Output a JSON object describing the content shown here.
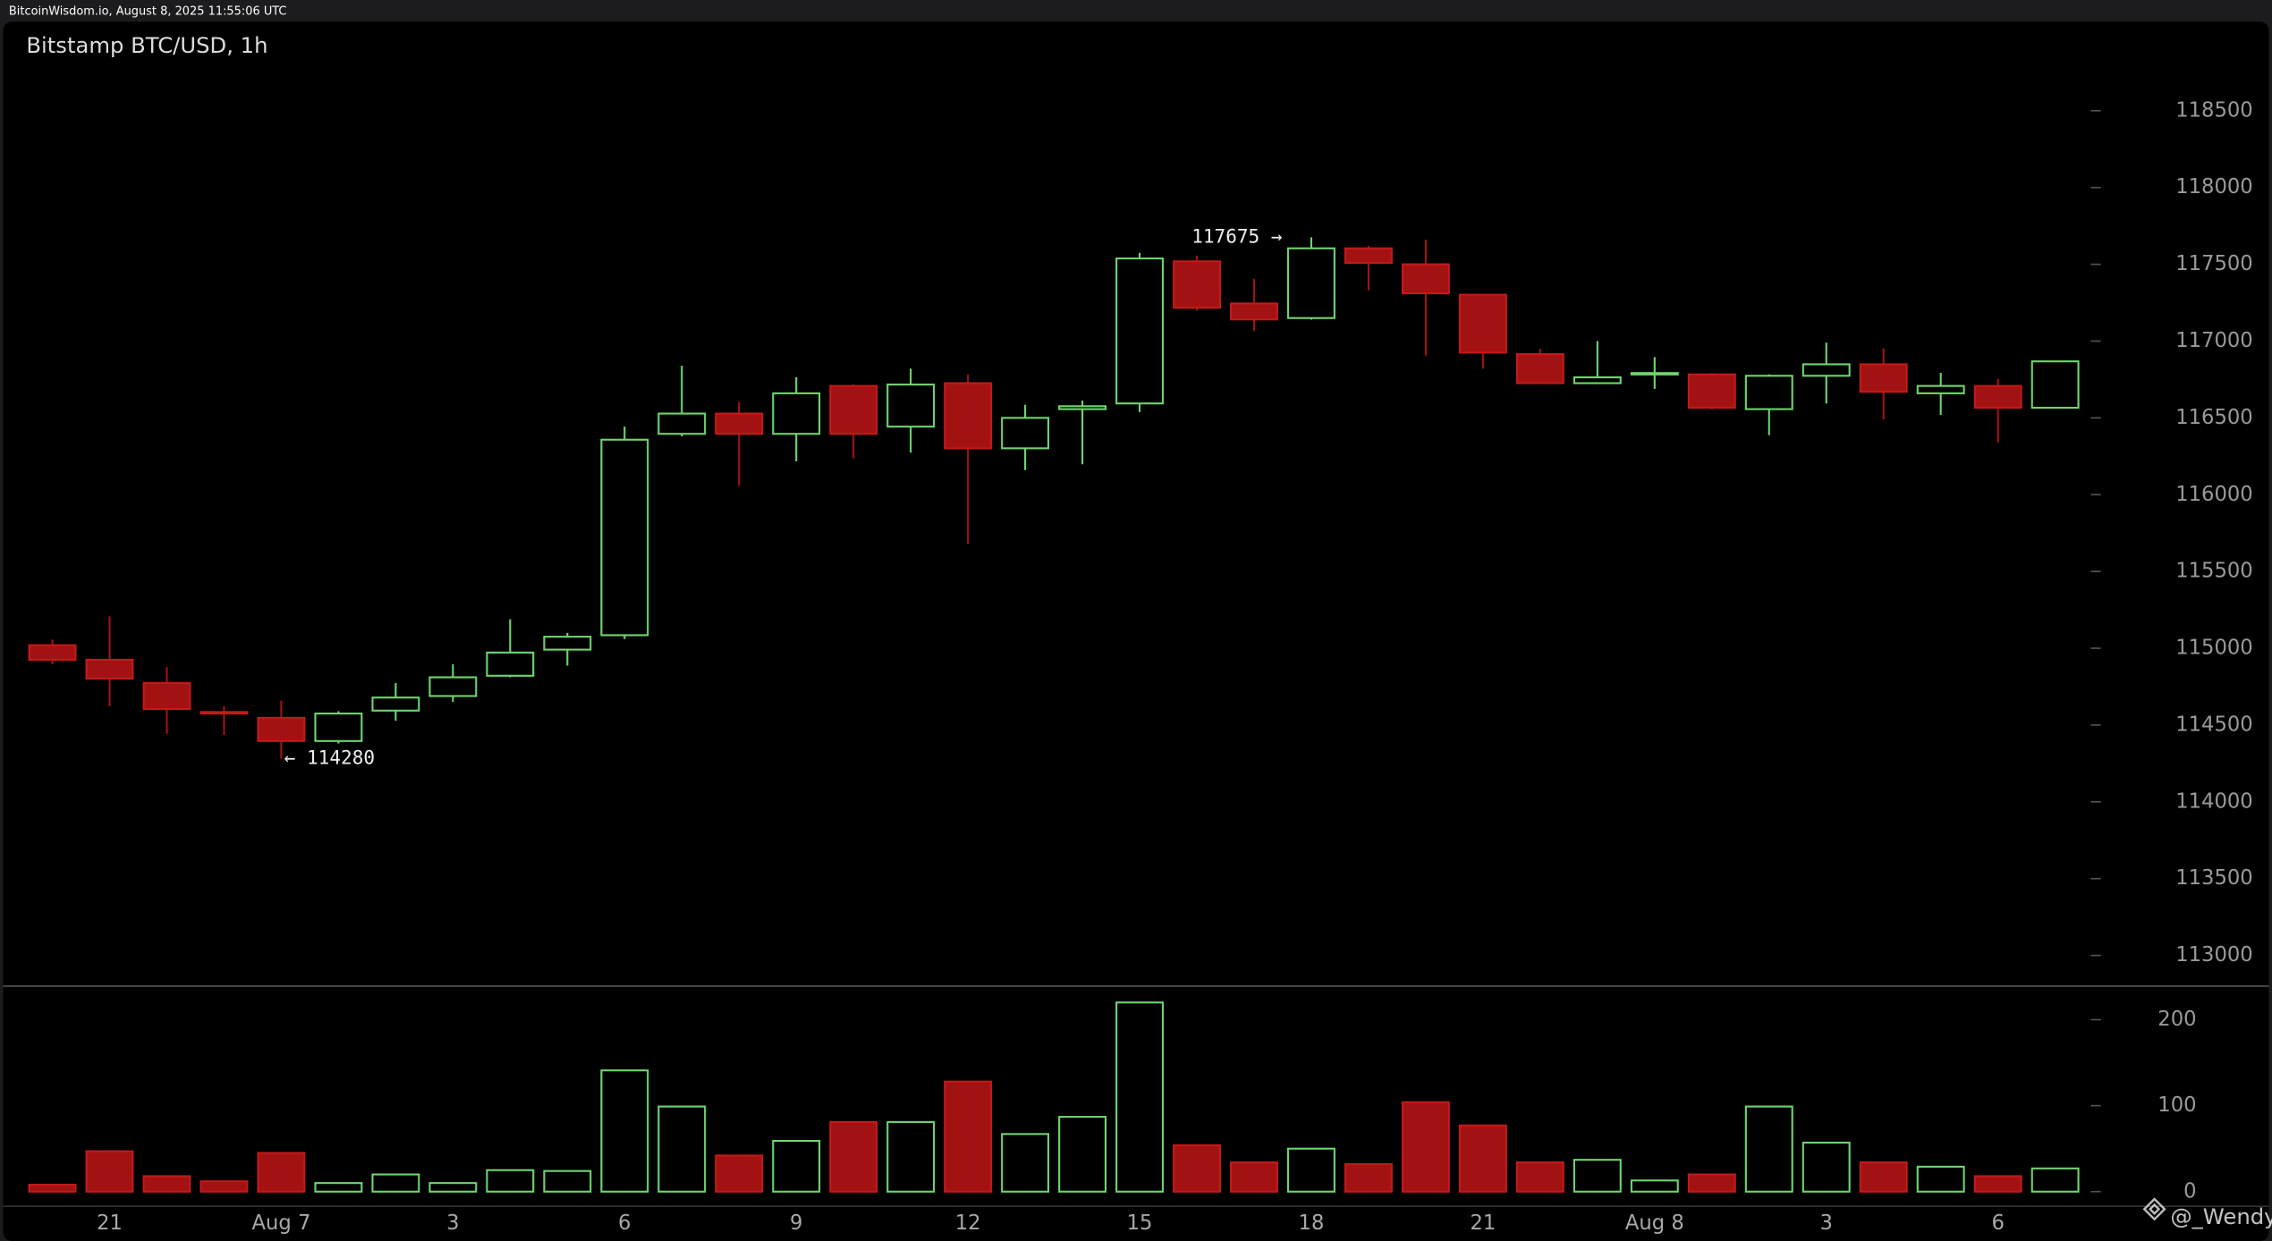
{
  "header": {
    "text": "BitcoinWisdom.io, August 8, 2025 11:55:06 UTC"
  },
  "watermark": {
    "text": "@_Wendy"
  },
  "chart_data": [
    {
      "type": "candlestick",
      "title": "Bitstamp BTC/USD, 1h",
      "categories": [
        null,
        "21",
        null,
        null,
        "Aug 7",
        null,
        null,
        "3",
        null,
        null,
        "6",
        null,
        null,
        "9",
        null,
        null,
        "12",
        null,
        null,
        "15",
        null,
        null,
        "18",
        null,
        null,
        "21",
        null,
        null,
        "Aug 8",
        null,
        null,
        "3",
        null,
        null,
        "6",
        null
      ],
      "open": [
        115020,
        114925,
        114774,
        114585,
        114547,
        114396,
        114594,
        114689,
        114821,
        114991,
        115085,
        116396,
        116528,
        116396,
        116708,
        116443,
        116726,
        116302,
        116557,
        116594,
        117519,
        117245,
        117150,
        117604,
        117500,
        117302,
        116915,
        116726,
        116783,
        116783,
        116557,
        116774,
        116849,
        116660,
        116708,
        116566
      ],
      "high": [
        115057,
        115208,
        114877,
        114623,
        114660,
        114590,
        114774,
        114896,
        115189,
        115100,
        116443,
        116840,
        116604,
        116764,
        116720,
        116821,
        116783,
        116585,
        116613,
        117575,
        117557,
        117406,
        117675,
        117620,
        117660,
        117302,
        116950,
        117000,
        116896,
        116792,
        116783,
        116990,
        116953,
        116793,
        116755,
        116870
      ],
      "low": [
        114896,
        114623,
        114443,
        114434,
        114280,
        114380,
        114528,
        114651,
        114811,
        114887,
        115060,
        116380,
        116057,
        116217,
        116236,
        116274,
        115680,
        116160,
        116198,
        116538,
        117198,
        117066,
        117140,
        117330,
        116906,
        116821,
        116720,
        116720,
        116689,
        116557,
        116387,
        116594,
        116490,
        116519,
        116340,
        116560
      ],
      "close": [
        114925,
        114802,
        114604,
        114575,
        114396,
        114575,
        114679,
        114811,
        114972,
        115075,
        116358,
        116528,
        116396,
        116660,
        116396,
        116717,
        116302,
        116500,
        116576,
        117538,
        117217,
        117141,
        117604,
        117509,
        117311,
        116925,
        116726,
        116764,
        116792,
        116566,
        116774,
        116849,
        116670,
        116708,
        116566,
        116868
      ],
      "up_color": "#6fd46f",
      "down_color": "#a31212",
      "ylim": [
        112800,
        119070
      ],
      "yticks": [
        113000,
        113500,
        114000,
        114500,
        115000,
        115500,
        116000,
        116500,
        117000,
        117500,
        118000,
        118500
      ],
      "annotations": [
        {
          "value": 117675,
          "label": "117675 →",
          "side": "left"
        },
        {
          "value": 114280,
          "label": "← 114280",
          "side": "right"
        }
      ]
    },
    {
      "type": "volume",
      "values": [
        8,
        47,
        18,
        12,
        45,
        10,
        20,
        10,
        25,
        24,
        141,
        99,
        42,
        59,
        81,
        81,
        128,
        67,
        87,
        220,
        54,
        34,
        50,
        32,
        104,
        77,
        34,
        37,
        13,
        20,
        99,
        57,
        34,
        29,
        18,
        27
      ],
      "ylim": [
        -17,
        239
      ],
      "yticks": [
        0,
        100,
        200
      ]
    }
  ]
}
